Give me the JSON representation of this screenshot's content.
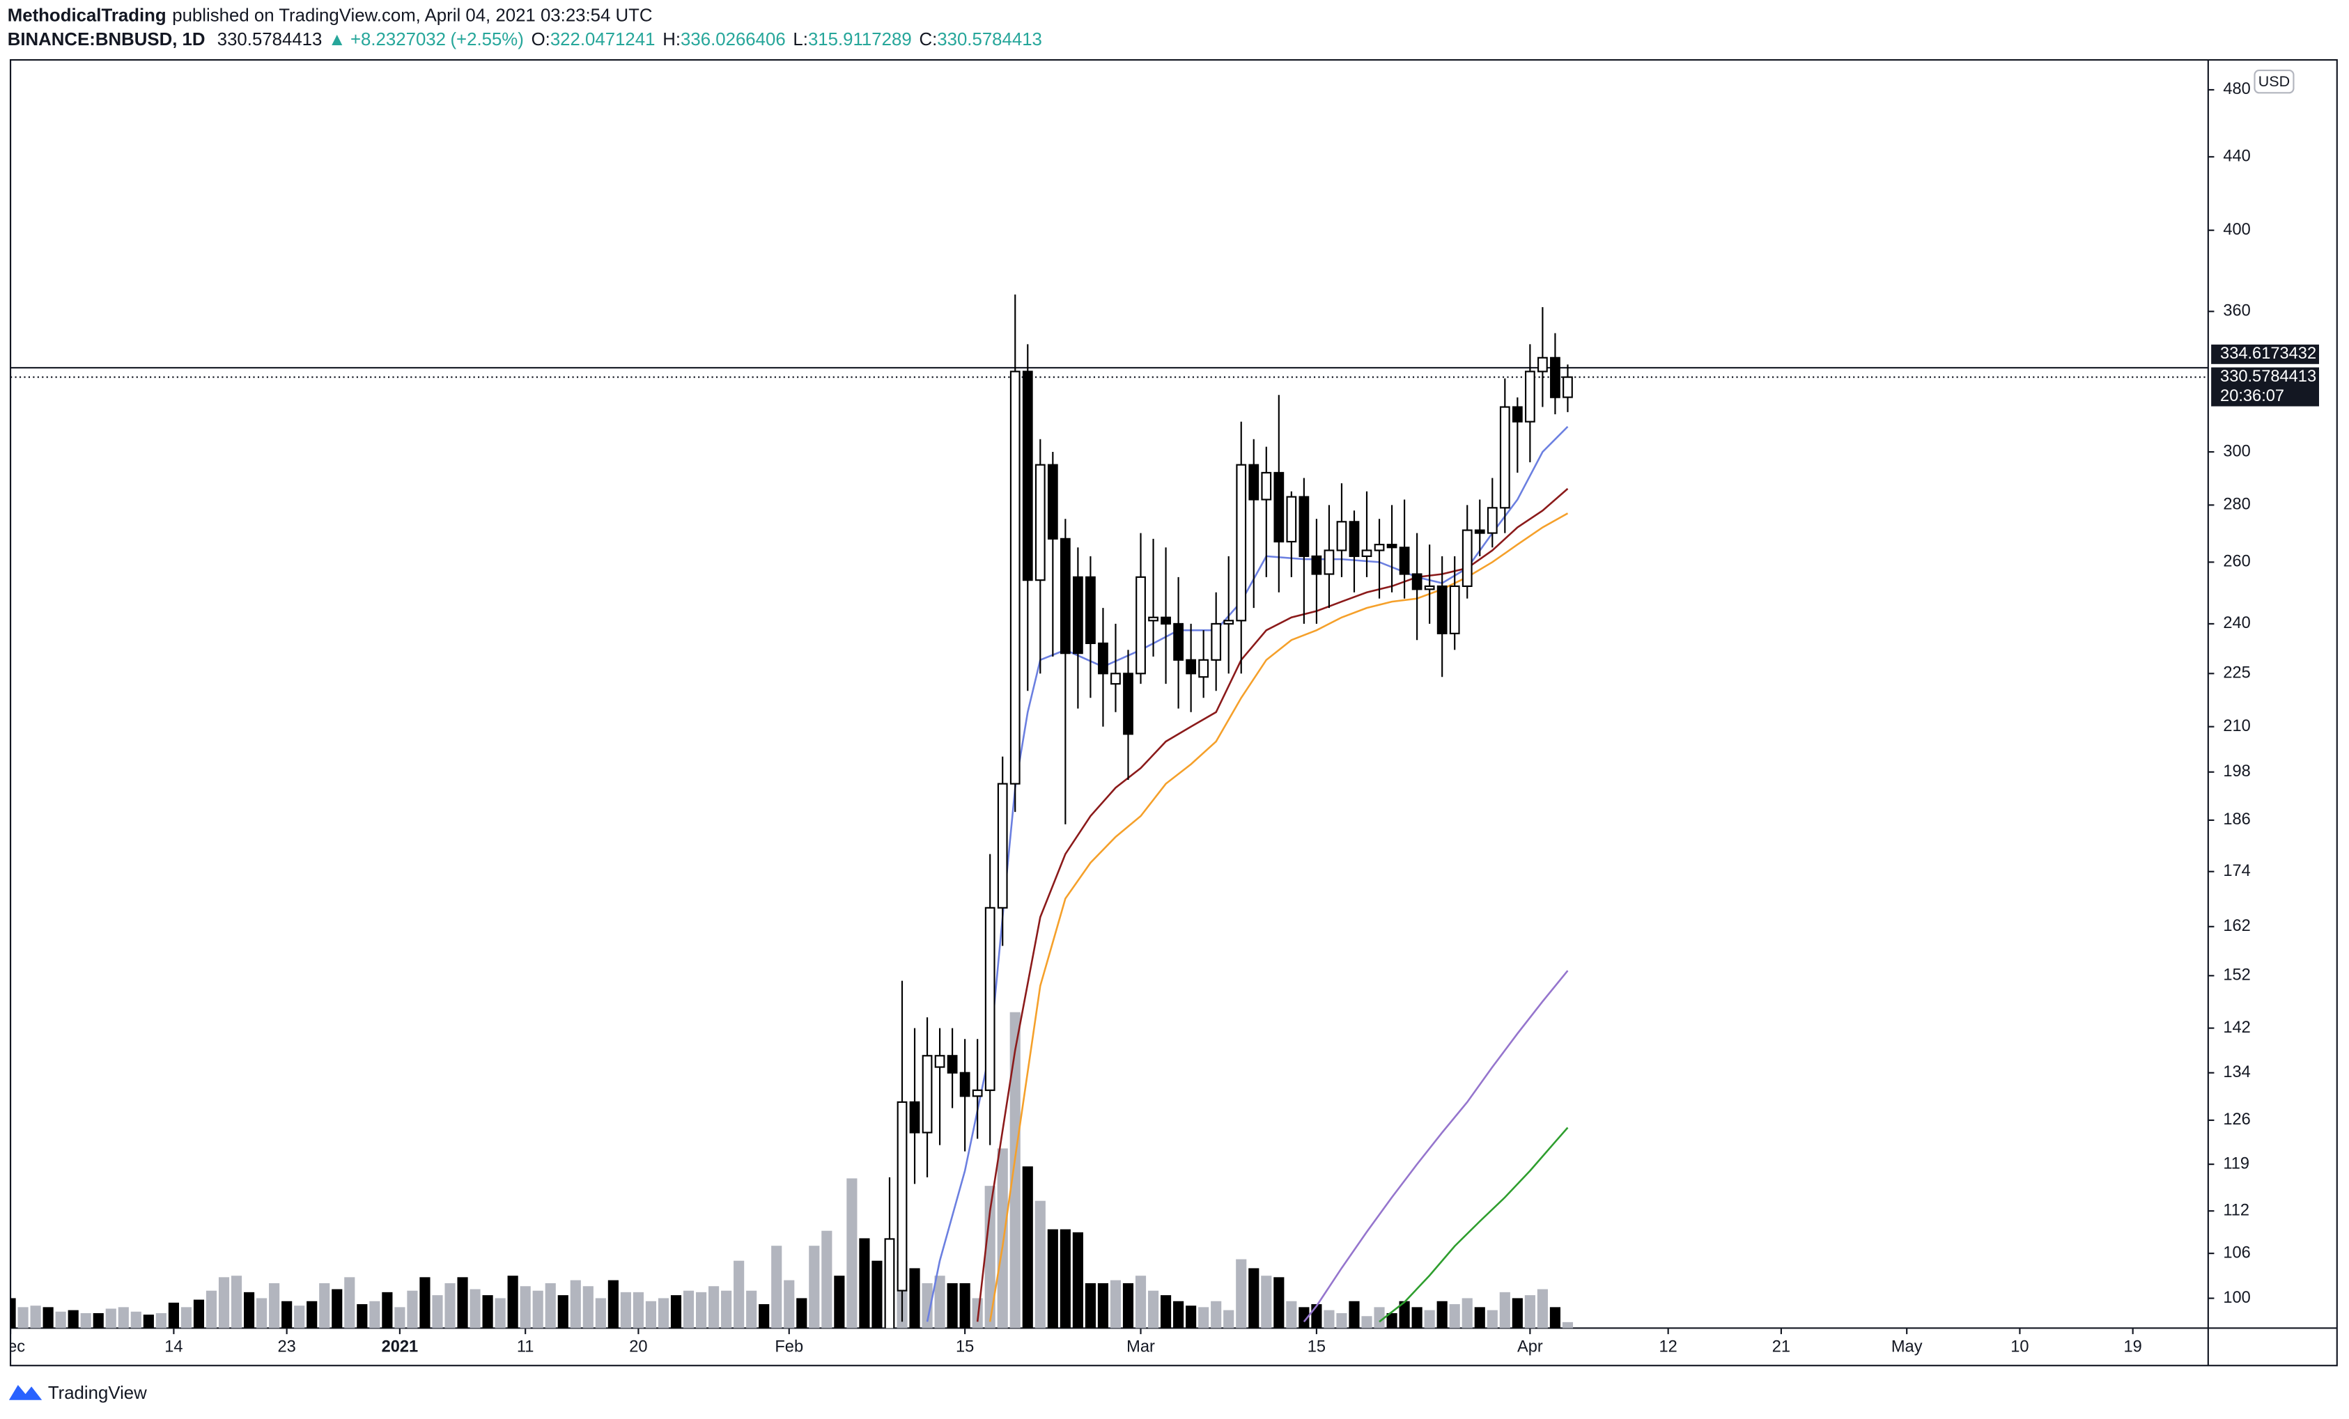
{
  "header": {
    "author": "MethodicalTrading",
    "published": "published on TradingView.com, April 04, 2021 03:23:54 UTC"
  },
  "footer": {
    "brand": "TradingView"
  },
  "chart_data": {
    "type": "candlestick",
    "title": "BINANCE:BNBUSD, 1D",
    "change_arrow": "▲",
    "change": "+8.2327032",
    "change_pct": "(+2.55%)",
    "ohlc_labels": [
      "O:",
      "H:",
      "L:",
      "C:"
    ],
    "currency": "USD",
    "countdown": "20:36:07",
    "hline": 334.6173432,
    "log_scale": true,
    "ylim": [
      96.2,
      499
    ],
    "yticks": [
      100,
      106,
      112,
      119,
      126,
      134,
      142,
      152,
      162,
      174,
      186,
      198,
      210,
      225,
      240,
      260,
      280,
      300,
      360,
      400,
      440,
      480
    ],
    "xlim": [
      "2020-12-01",
      "2021-05-25"
    ],
    "xticks": [
      {
        "value": "2020-12-01",
        "label": "Dec"
      },
      {
        "value": "2020-12-14",
        "label": "14"
      },
      {
        "value": "2020-12-23",
        "label": "23"
      },
      {
        "value": "2021-01-01",
        "label": "2021"
      },
      {
        "value": "2021-01-11",
        "label": "11"
      },
      {
        "value": "2021-01-20",
        "label": "20"
      },
      {
        "value": "2021-02-01",
        "label": "Feb"
      },
      {
        "value": "2021-02-15",
        "label": "15"
      },
      {
        "value": "2021-03-01",
        "label": "Mar"
      },
      {
        "value": "2021-03-15",
        "label": "15"
      },
      {
        "value": "2021-04-01",
        "label": "Apr"
      },
      {
        "value": "2021-04-12",
        "label": "12"
      },
      {
        "value": "2021-04-21",
        "label": "21"
      },
      {
        "value": "2021-05-01",
        "label": "May"
      },
      {
        "value": "2021-05-10",
        "label": "10"
      },
      {
        "value": "2021-05-19",
        "label": "19"
      }
    ],
    "up_color": "#ffffff",
    "down_color": "#000000",
    "x": [
      "2021-02-09",
      "2021-02-10",
      "2021-02-11",
      "2021-02-12",
      "2021-02-13",
      "2021-02-14",
      "2021-02-15",
      "2021-02-16",
      "2021-02-17",
      "2021-02-18",
      "2021-02-19",
      "2021-02-20",
      "2021-02-21",
      "2021-02-22",
      "2021-02-23",
      "2021-02-24",
      "2021-02-25",
      "2021-02-26",
      "2021-02-27",
      "2021-02-28",
      "2021-03-01",
      "2021-03-02",
      "2021-03-03",
      "2021-03-04",
      "2021-03-05",
      "2021-03-06",
      "2021-03-07",
      "2021-03-08",
      "2021-03-09",
      "2021-03-10",
      "2021-03-11",
      "2021-03-12",
      "2021-03-13",
      "2021-03-14",
      "2021-03-15",
      "2021-03-16",
      "2021-03-17",
      "2021-03-18",
      "2021-03-19",
      "2021-03-20",
      "2021-03-21",
      "2021-03-22",
      "2021-03-23",
      "2021-03-24",
      "2021-03-25",
      "2021-03-26",
      "2021-03-27",
      "2021-03-28",
      "2021-03-29",
      "2021-03-30",
      "2021-03-31",
      "2021-04-01",
      "2021-04-02",
      "2021-04-03",
      "2021-04-04"
    ],
    "open": [
      96,
      101,
      129,
      124,
      135,
      137,
      134,
      130,
      131,
      166,
      195,
      333,
      254,
      295,
      268,
      255,
      255,
      234,
      222,
      225,
      225,
      241,
      242,
      240,
      229,
      224,
      229,
      240,
      241,
      295,
      282,
      292,
      267,
      283,
      262,
      256,
      264,
      274,
      262,
      264,
      266,
      265,
      256,
      251,
      252,
      237,
      252,
      271,
      270,
      279,
      318,
      312,
      333,
      339,
      322.0471241
    ],
    "high": [
      117,
      151,
      142,
      144,
      142,
      142,
      140,
      140,
      178,
      202,
      368,
      345,
      305,
      300,
      275,
      265,
      262,
      245,
      240,
      232,
      270,
      268,
      265,
      255,
      240,
      238,
      250,
      262,
      312,
      305,
      302,
      323,
      285,
      290,
      275,
      280,
      288,
      278,
      285,
      275,
      280,
      282,
      270,
      266,
      262,
      262,
      280,
      282,
      290,
      330,
      322,
      345,
      362,
      350,
      336.0266406
    ],
    "low": [
      92,
      97,
      116,
      117,
      122,
      128,
      121,
      123,
      122,
      158,
      188,
      220,
      225,
      230,
      185,
      215,
      218,
      210,
      214,
      196,
      222,
      230,
      222,
      215,
      214,
      218,
      220,
      225,
      225,
      245,
      255,
      250,
      255,
      240,
      240,
      245,
      255,
      250,
      255,
      248,
      250,
      248,
      235,
      240,
      224,
      232,
      248,
      262,
      265,
      270,
      292,
      296,
      318,
      315,
      315.9117289
    ],
    "close": [
      108,
      129,
      124,
      137,
      137,
      134,
      130,
      131,
      166,
      195,
      333,
      254,
      295,
      268,
      231,
      231,
      234,
      225,
      225,
      208,
      255,
      242,
      240,
      229,
      225,
      229,
      240,
      241,
      295,
      282,
      292,
      267,
      283,
      262,
      256,
      264,
      274,
      262,
      264,
      266,
      265,
      256,
      251,
      252,
      237,
      252,
      271,
      270,
      279,
      318,
      312,
      333,
      339,
      322,
      330.5784413
    ],
    "volume": {
      "up_color": "#b2b5be",
      "down_color": "#000000",
      "ylim": [
        0,
        847
      ],
      "x": [
        "2020-12-01",
        "2020-12-02",
        "2020-12-03",
        "2020-12-04",
        "2020-12-05",
        "2020-12-06",
        "2020-12-07",
        "2020-12-08",
        "2020-12-09",
        "2020-12-10",
        "2020-12-11",
        "2020-12-12",
        "2020-12-13",
        "2020-12-14",
        "2020-12-15",
        "2020-12-16",
        "2020-12-17",
        "2020-12-18",
        "2020-12-19",
        "2020-12-20",
        "2020-12-21",
        "2020-12-22",
        "2020-12-23",
        "2020-12-24",
        "2020-12-25",
        "2020-12-26",
        "2020-12-27",
        "2020-12-28",
        "2020-12-29",
        "2020-12-30",
        "2020-12-31",
        "2021-01-01",
        "2021-01-02",
        "2021-01-03",
        "2021-01-04",
        "2021-01-05",
        "2021-01-06",
        "2021-01-07",
        "2021-01-08",
        "2021-01-09",
        "2021-01-10",
        "2021-01-11",
        "2021-01-12",
        "2021-01-13",
        "2021-01-14",
        "2021-01-15",
        "2021-01-16",
        "2021-01-17",
        "2021-01-18",
        "2021-01-19",
        "2021-01-20",
        "2021-01-21",
        "2021-01-22",
        "2021-01-23",
        "2021-01-24",
        "2021-01-25",
        "2021-01-26",
        "2021-01-27",
        "2021-01-28",
        "2021-01-29",
        "2021-01-30",
        "2021-01-31",
        "2021-02-01",
        "2021-02-02",
        "2021-02-03",
        "2021-02-04",
        "2021-02-05",
        "2021-02-06",
        "2021-02-07",
        "2021-02-08",
        "2021-02-09",
        "2021-02-10",
        "2021-02-11",
        "2021-02-12",
        "2021-02-13",
        "2021-02-14",
        "2021-02-15",
        "2021-02-16",
        "2021-02-17",
        "2021-02-18",
        "2021-02-19",
        "2021-02-20",
        "2021-02-21",
        "2021-02-22",
        "2021-02-23",
        "2021-02-24",
        "2021-02-25",
        "2021-02-26",
        "2021-02-27",
        "2021-02-28",
        "2021-03-01",
        "2021-03-02",
        "2021-03-03",
        "2021-03-04",
        "2021-03-05",
        "2021-03-06",
        "2021-03-07",
        "2021-03-08",
        "2021-03-09",
        "2021-03-10",
        "2021-03-11",
        "2021-03-12",
        "2021-03-13",
        "2021-03-14",
        "2021-03-15",
        "2021-03-16",
        "2021-03-17",
        "2021-03-18",
        "2021-03-19",
        "2021-03-20",
        "2021-03-21",
        "2021-03-22",
        "2021-03-23",
        "2021-03-24",
        "2021-03-25",
        "2021-03-26",
        "2021-03-27",
        "2021-03-28",
        "2021-03-29",
        "2021-03-30",
        "2021-03-31",
        "2021-04-01",
        "2021-04-02",
        "2021-04-03",
        "2021-04-04"
      ],
      "values": [
        20,
        14,
        15,
        14,
        11,
        12,
        10,
        10,
        13,
        14,
        11,
        9,
        10,
        17,
        14,
        19,
        25,
        34,
        35,
        24,
        20,
        30,
        18,
        15,
        18,
        30,
        26,
        34,
        16,
        18,
        24,
        14,
        25,
        34,
        22,
        30,
        34,
        26,
        22,
        20,
        35,
        28,
        25,
        30,
        22,
        32,
        28,
        20,
        32,
        24,
        24,
        18,
        20,
        22,
        25,
        24,
        28,
        25,
        45,
        25,
        16,
        55,
        32,
        20,
        55,
        65,
        35,
        100,
        60,
        45,
        60,
        45,
        40,
        30,
        35,
        30,
        30,
        20,
        95,
        120,
        211,
        108,
        85,
        66,
        66,
        64,
        30,
        30,
        32,
        30,
        35,
        25,
        22,
        18,
        15,
        14,
        18,
        12,
        46,
        40,
        35,
        34,
        18,
        14,
        16,
        12,
        10,
        18,
        8,
        14,
        10,
        18,
        14,
        12,
        18,
        16,
        20,
        14,
        12,
        24,
        20,
        22,
        26,
        14,
        4
      ],
      "up": [
        false,
        true,
        true,
        false,
        true,
        false,
        true,
        false,
        true,
        true,
        true,
        false,
        true,
        false,
        true,
        false,
        true,
        true,
        true,
        false,
        true,
        true,
        false,
        true,
        false,
        true,
        false,
        true,
        false,
        true,
        false,
        true,
        true,
        false,
        true,
        true,
        false,
        true,
        false,
        true,
        false,
        true,
        true,
        true,
        false,
        true,
        true,
        true,
        false,
        true,
        true,
        true,
        true,
        false,
        true,
        true,
        true,
        true,
        true,
        true,
        false,
        true,
        true,
        false,
        true,
        true,
        false,
        true,
        false,
        false,
        true,
        true,
        false,
        true,
        true,
        false,
        false,
        true,
        true,
        true,
        true,
        false,
        true,
        false,
        false,
        false,
        false,
        false,
        true,
        false,
        true,
        true,
        false,
        false,
        false,
        true,
        true,
        true,
        true,
        false,
        true,
        false,
        true,
        false,
        false,
        true,
        true,
        false,
        true,
        true,
        false,
        false,
        false,
        true,
        false,
        true,
        true,
        false,
        true,
        true,
        false,
        true,
        true,
        false,
        true
      ]
    },
    "lines": [
      {
        "color": "#6b7fe0",
        "x": [
          "2021-02-12",
          "2021-02-13",
          "2021-02-15",
          "2021-02-17",
          "2021-02-18",
          "2021-02-19",
          "2021-02-20",
          "2021-02-21",
          "2021-02-23",
          "2021-02-26",
          "2021-03-01",
          "2021-03-04",
          "2021-03-07",
          "2021-03-09",
          "2021-03-11",
          "2021-03-14",
          "2021-03-17",
          "2021-03-20",
          "2021-03-23",
          "2021-03-25",
          "2021-03-27",
          "2021-03-29",
          "2021-03-31",
          "2021-04-02",
          "2021-04-04"
        ],
        "values": [
          97,
          105,
          118,
          138,
          164,
          194,
          214,
          229,
          232,
          227,
          232,
          238,
          238,
          247,
          262,
          261,
          261,
          260,
          255,
          253,
          258,
          270,
          282,
          300,
          310
        ]
      },
      {
        "color": "#8b1a1a",
        "x": [
          "2021-02-16",
          "2021-02-17",
          "2021-02-19",
          "2021-02-21",
          "2021-02-23",
          "2021-02-25",
          "2021-02-27",
          "2021-03-01",
          "2021-03-03",
          "2021-03-05",
          "2021-03-07",
          "2021-03-09",
          "2021-03-11",
          "2021-03-13",
          "2021-03-15",
          "2021-03-17",
          "2021-03-19",
          "2021-03-21",
          "2021-03-23",
          "2021-03-25",
          "2021-03-27",
          "2021-03-29",
          "2021-03-31",
          "2021-04-02",
          "2021-04-04"
        ],
        "values": [
          97,
          112,
          138,
          164,
          178,
          187,
          194,
          199,
          206,
          210,
          214,
          229,
          238,
          242,
          244,
          247,
          250,
          252,
          255,
          256,
          258,
          264,
          272,
          278,
          286
        ]
      },
      {
        "color": "#f5a02a",
        "x": [
          "2021-02-17",
          "2021-02-18",
          "2021-02-19",
          "2021-02-21",
          "2021-02-23",
          "2021-02-25",
          "2021-02-27",
          "2021-03-01",
          "2021-03-03",
          "2021-03-05",
          "2021-03-07",
          "2021-03-09",
          "2021-03-11",
          "2021-03-13",
          "2021-03-15",
          "2021-03-17",
          "2021-03-19",
          "2021-03-21",
          "2021-03-23",
          "2021-03-25",
          "2021-03-27",
          "2021-03-29",
          "2021-03-31",
          "2021-04-02",
          "2021-04-04"
        ],
        "values": [
          97,
          107,
          120,
          150,
          168,
          176,
          182,
          187,
          195,
          200,
          206,
          218,
          229,
          235,
          238,
          242,
          245,
          247,
          248,
          251,
          255,
          260,
          266,
          272,
          277
        ]
      },
      {
        "color": "#9575cd",
        "x": [
          "2021-03-14",
          "2021-03-15",
          "2021-03-17",
          "2021-03-19",
          "2021-03-21",
          "2021-03-23",
          "2021-03-25",
          "2021-03-27",
          "2021-03-29",
          "2021-03-31",
          "2021-04-02",
          "2021-04-04"
        ],
        "values": [
          97,
          99,
          104,
          109,
          114,
          119,
          124,
          129,
          135,
          141,
          147,
          153
        ]
      },
      {
        "color": "#2e9e2e",
        "x": [
          "2021-03-20",
          "2021-03-22",
          "2021-03-24",
          "2021-03-26",
          "2021-03-28",
          "2021-03-30",
          "2021-04-01",
          "2021-04-03",
          "2021-04-04"
        ],
        "values": [
          97,
          99.5,
          103,
          107,
          110.5,
          114,
          118,
          122.5,
          124.8
        ]
      }
    ]
  }
}
